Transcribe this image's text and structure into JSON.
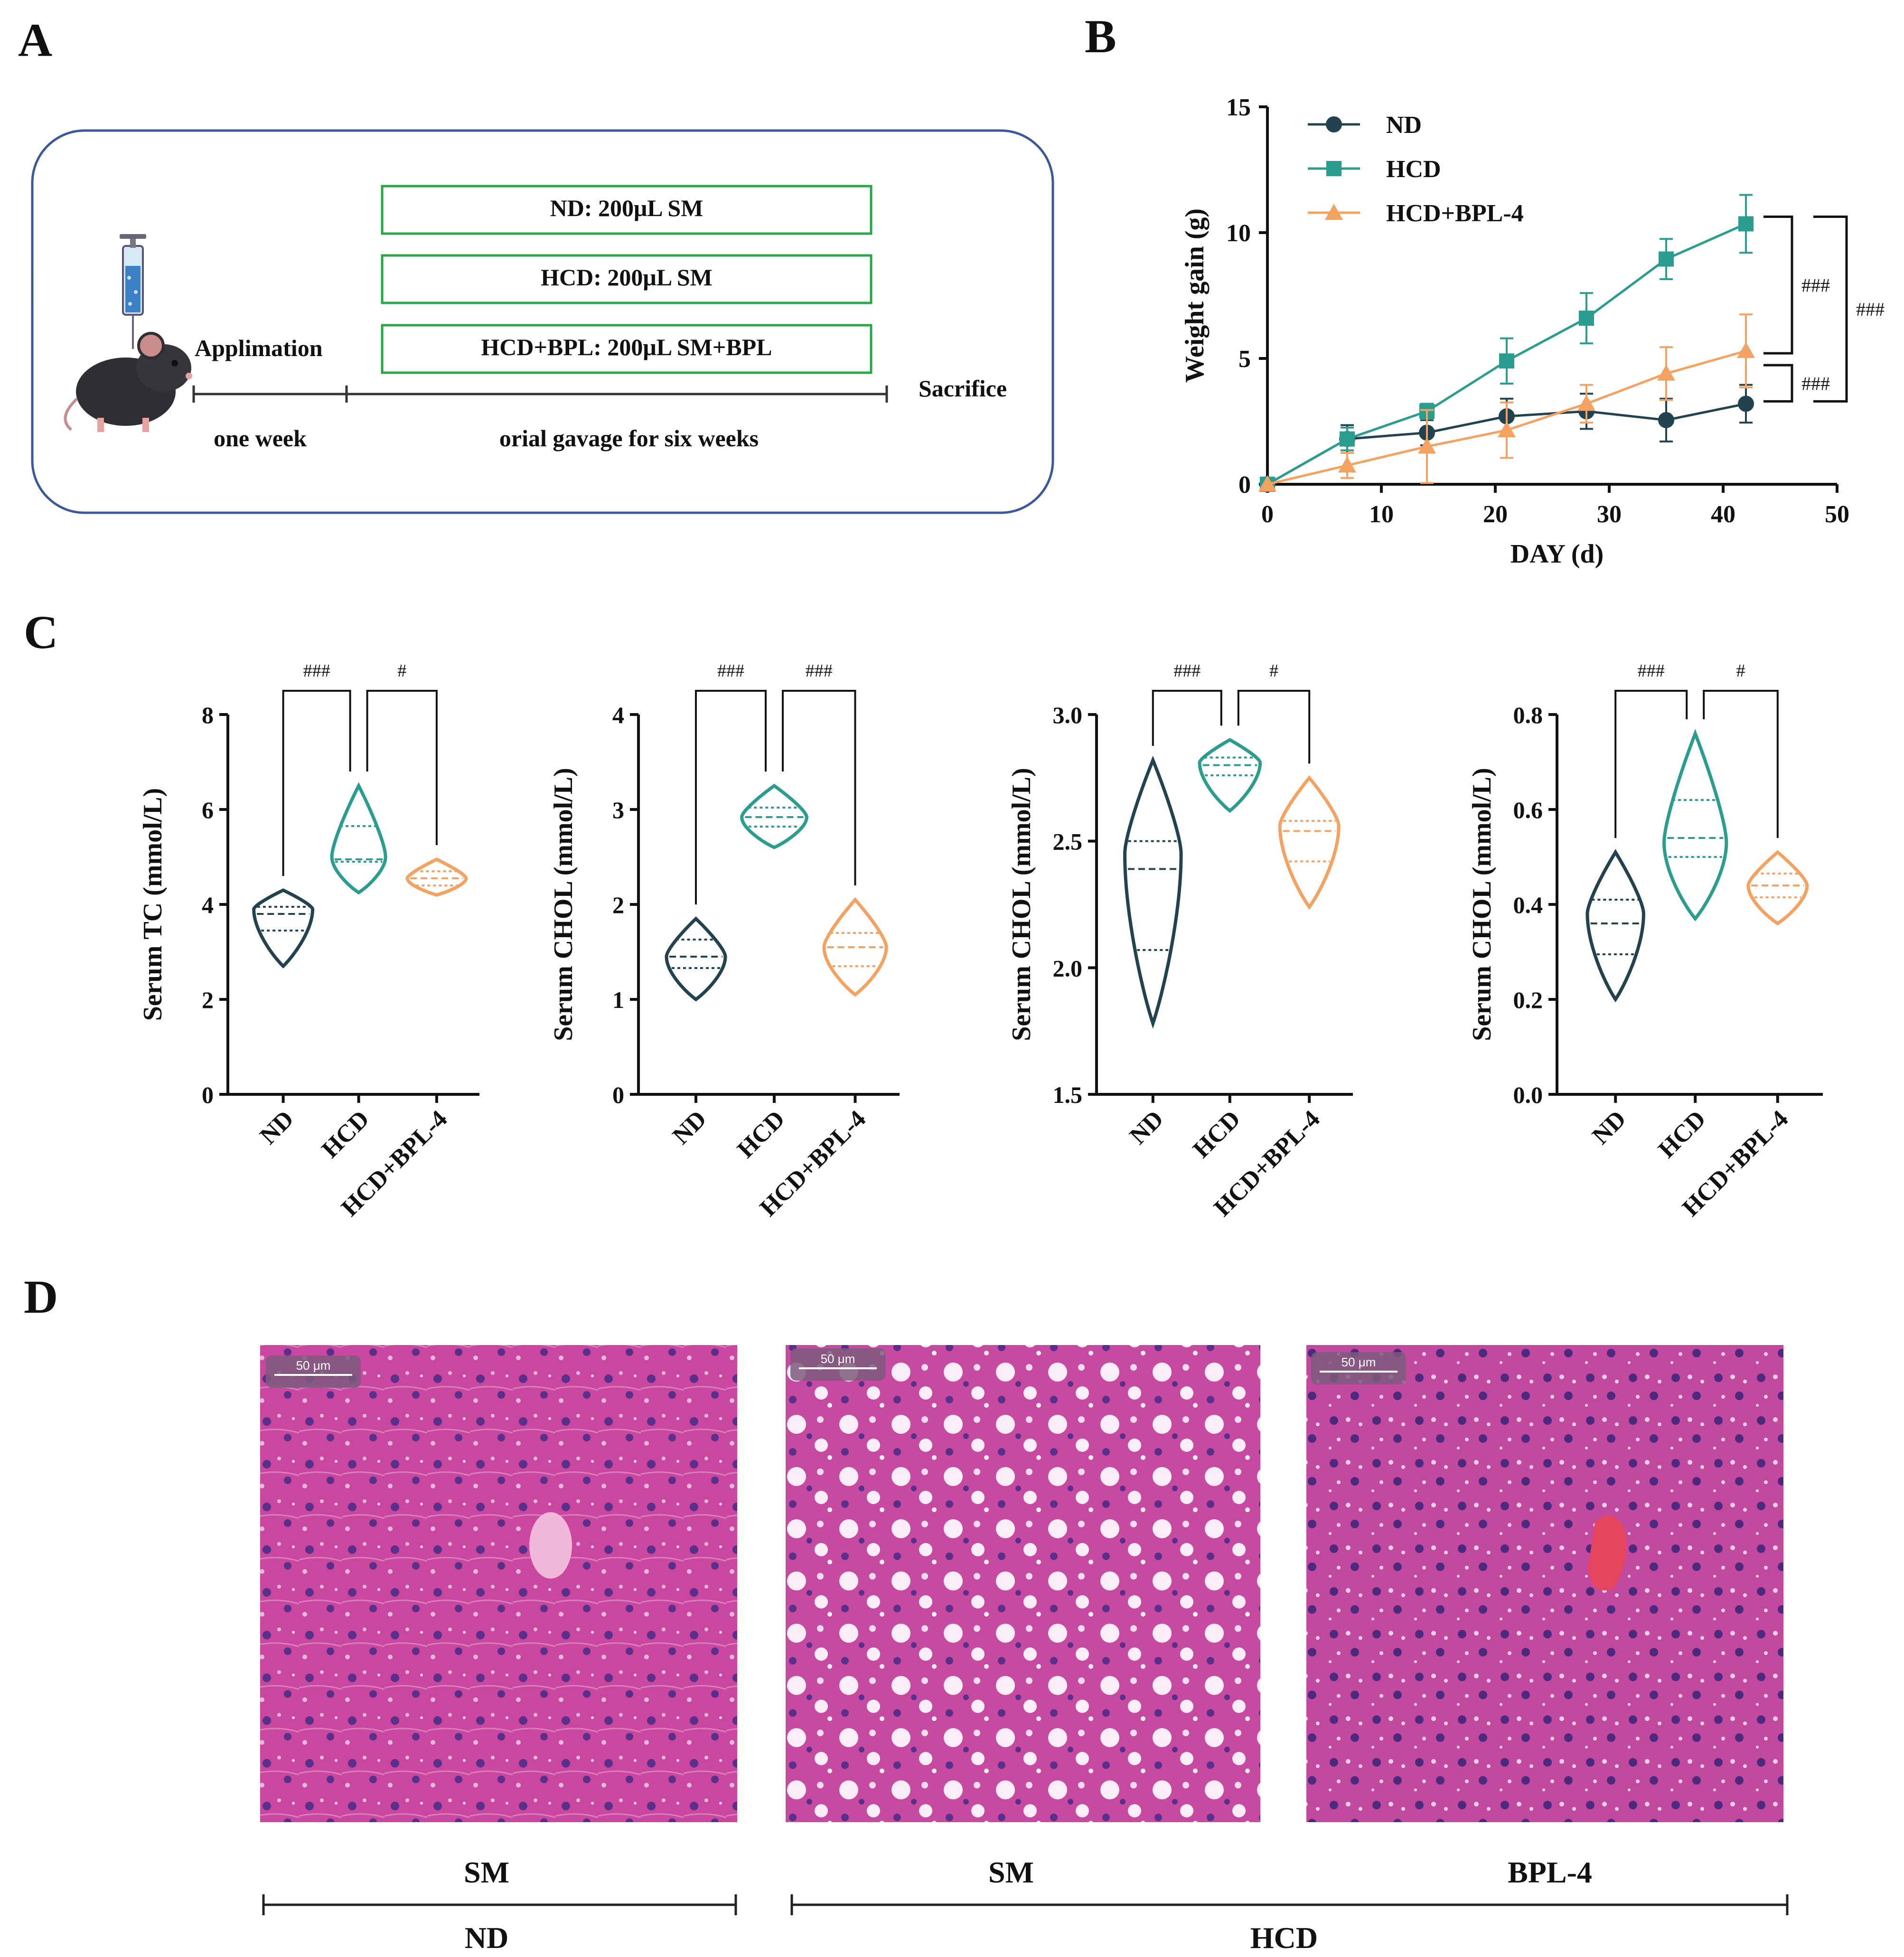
{
  "panels": {
    "A": {
      "letter": "A",
      "groups": [
        "ND: 200μL SM",
        "HCD: 200μL SM",
        "HCD+BPL: 200μL SM+BPL"
      ],
      "applimation": "Applimation",
      "sacrifice": "Sacrifice",
      "one_week": "one week",
      "gavage": "orial gavage for six weeks",
      "icons": [
        "syringe-icon",
        "mouse-icon"
      ]
    },
    "C": {
      "letter": "C"
    },
    "D": {
      "letter": "D",
      "scale_bar": "50 μm",
      "treatments": [
        "SM",
        "SM",
        "BPL-4"
      ],
      "group_nd": "ND",
      "group_hcd": "HCD"
    }
  },
  "colors": {
    "ND": "#22424f",
    "HCD": "#2a9d8f",
    "HCD+BPL-4": "#f4a261",
    "frame": "#3b5998",
    "box": "#27a745"
  },
  "chart_data": [
    {
      "panel": "B",
      "type": "line",
      "xlabel": "DAY (d)",
      "ylabel": "Weight gain (g)",
      "xlim": [
        0,
        50
      ],
      "ylim": [
        0,
        15
      ],
      "xticks": [
        0,
        10,
        20,
        30,
        40,
        50
      ],
      "yticks": [
        0,
        5,
        10,
        15
      ],
      "legend": "top-left",
      "x": [
        0,
        7,
        14,
        21,
        28,
        35,
        42
      ],
      "series": [
        {
          "name": "ND",
          "marker": "circle",
          "values": [
            0,
            1.8,
            2.05,
            2.7,
            2.9,
            2.55,
            3.2
          ],
          "errors": [
            0,
            0.55,
            0.5,
            0.7,
            0.7,
            0.85,
            0.75
          ]
        },
        {
          "name": "HCD",
          "marker": "square",
          "values": [
            0,
            1.8,
            2.9,
            4.9,
            6.6,
            8.95,
            10.35
          ],
          "errors": [
            0,
            0.45,
            0.3,
            0.9,
            1.0,
            0.8,
            1.15
          ]
        },
        {
          "name": "HCD+BPL-4",
          "marker": "triangle",
          "values": [
            0,
            0.75,
            1.5,
            2.15,
            3.2,
            4.4,
            5.3
          ],
          "errors": [
            0,
            0.5,
            1.45,
            1.1,
            0.75,
            1.05,
            1.45
          ]
        }
      ],
      "annotations": [
        {
          "label": "###",
          "from": "HCD",
          "to": "HCD+BPL-4"
        },
        {
          "label": "###",
          "from": "HCD+BPL-4",
          "to": "ND"
        },
        {
          "label": "###",
          "from": "HCD",
          "to": "ND"
        }
      ]
    },
    {
      "panel": "C1",
      "type": "violin",
      "ylabel": "Serum TC (mmol/L)",
      "categories": [
        "ND",
        "HCD",
        "HCD+BPL-4"
      ],
      "ylim": [
        0,
        8
      ],
      "yticks": [
        "0",
        "2",
        "4",
        "6",
        "8"
      ],
      "groups": [
        {
          "name": "ND",
          "min": 2.7,
          "q1": 3.45,
          "median": 3.8,
          "q3": 3.95,
          "max": 4.3,
          "mode": 3.9,
          "width": 0.68
        },
        {
          "name": "HCD",
          "min": 4.25,
          "q1": 4.9,
          "median": 4.95,
          "q3": 5.65,
          "max": 6.5,
          "mode": 5.0,
          "width": 0.62
        },
        {
          "name": "HCD+BPL-4",
          "min": 4.2,
          "q1": 4.4,
          "median": 4.55,
          "q3": 4.7,
          "max": 4.95,
          "mode": 4.55,
          "width": 0.68
        }
      ],
      "annotations": [
        {
          "label": "###",
          "from": "ND",
          "to": "HCD"
        },
        {
          "label": "#",
          "from": "HCD",
          "to": "HCD+BPL-4"
        }
      ]
    },
    {
      "panel": "C2",
      "type": "violin",
      "ylabel": "Serum CHOL (mmol/L)",
      "categories": [
        "ND",
        "HCD",
        "HCD+BPL-4"
      ],
      "ylim": [
        0,
        4
      ],
      "yticks": [
        "0",
        "1",
        "2",
        "3",
        "4"
      ],
      "groups": [
        {
          "name": "ND",
          "min": 1.0,
          "q1": 1.33,
          "median": 1.45,
          "q3": 1.63,
          "max": 1.85,
          "mode": 1.45,
          "width": 0.68
        },
        {
          "name": "HCD",
          "min": 2.6,
          "q1": 2.82,
          "median": 2.92,
          "q3": 3.02,
          "max": 3.25,
          "mode": 2.92,
          "width": 0.75
        },
        {
          "name": "HCD+BPL-4",
          "min": 1.05,
          "q1": 1.35,
          "median": 1.55,
          "q3": 1.7,
          "max": 2.05,
          "mode": 1.55,
          "width": 0.72
        }
      ],
      "annotations": [
        {
          "label": "###",
          "from": "ND",
          "to": "HCD"
        },
        {
          "label": "###",
          "from": "HCD",
          "to": "HCD+BPL-4"
        }
      ]
    },
    {
      "panel": "C3",
      "type": "violin",
      "ylabel": "Serum CHOL (mmol/L)",
      "categories": [
        "ND",
        "HCD",
        "HCD+BPL-4"
      ],
      "ylim": [
        1.5,
        3.0
      ],
      "yticks": [
        "1.5",
        "2.0",
        "2.5",
        "3.0"
      ],
      "groups": [
        {
          "name": "ND",
          "min": 1.78,
          "q1": 2.07,
          "median": 2.39,
          "q3": 2.5,
          "max": 2.82,
          "mode": 2.45,
          "width": 0.65
        },
        {
          "name": "HCD",
          "min": 2.62,
          "q1": 2.76,
          "median": 2.8,
          "q3": 2.83,
          "max": 2.9,
          "mode": 2.81,
          "width": 0.7
        },
        {
          "name": "HCD+BPL-4",
          "min": 2.24,
          "q1": 2.42,
          "median": 2.54,
          "q3": 2.58,
          "max": 2.75,
          "mode": 2.56,
          "width": 0.68
        }
      ],
      "annotations": [
        {
          "label": "###",
          "from": "ND",
          "to": "HCD"
        },
        {
          "label": "#",
          "from": "HCD",
          "to": "HCD+BPL-4"
        }
      ]
    },
    {
      "panel": "C4",
      "type": "violin",
      "ylabel": "Serum CHOL (mmol/L)",
      "categories": [
        "ND",
        "HCD",
        "HCD+BPL-4"
      ],
      "ylim": [
        0.0,
        0.8
      ],
      "yticks": [
        "0.0",
        "0.2",
        "0.4",
        "0.6",
        "0.8"
      ],
      "groups": [
        {
          "name": "ND",
          "min": 0.2,
          "q1": 0.295,
          "median": 0.36,
          "q3": 0.41,
          "max": 0.51,
          "mode": 0.38,
          "width": 0.65
        },
        {
          "name": "HCD",
          "min": 0.37,
          "q1": 0.5,
          "median": 0.54,
          "q3": 0.62,
          "max": 0.76,
          "mode": 0.53,
          "width": 0.72
        },
        {
          "name": "HCD+BPL-4",
          "min": 0.36,
          "q1": 0.415,
          "median": 0.44,
          "q3": 0.465,
          "max": 0.51,
          "mode": 0.44,
          "width": 0.68
        }
      ],
      "annotations": [
        {
          "label": "###",
          "from": "ND",
          "to": "HCD"
        },
        {
          "label": "#",
          "from": "HCD",
          "to": "HCD+BPL-4"
        }
      ]
    }
  ]
}
